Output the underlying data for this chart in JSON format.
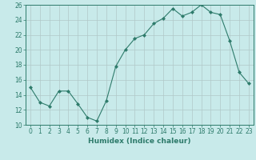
{
  "xlabel": "Humidex (Indice chaleur)",
  "ylabel": "",
  "x": [
    0,
    1,
    2,
    3,
    4,
    5,
    6,
    7,
    8,
    9,
    10,
    11,
    12,
    13,
    14,
    15,
    16,
    17,
    18,
    19,
    20,
    21,
    22,
    23
  ],
  "y": [
    15.0,
    13.0,
    12.5,
    14.5,
    14.5,
    12.8,
    11.0,
    10.5,
    13.2,
    17.8,
    20.0,
    21.5,
    22.0,
    23.5,
    24.2,
    25.5,
    24.5,
    25.0,
    26.0,
    25.0,
    24.7,
    21.2,
    17.0,
    15.5
  ],
  "line_color": "#2e7b6b",
  "marker_color": "#2e7b6b",
  "bg_color": "#c8eaea",
  "grid_color": "#b0c8c8",
  "ylim": [
    10,
    26
  ],
  "xlim": [
    -0.5,
    23.5
  ],
  "yticks": [
    10,
    12,
    14,
    16,
    18,
    20,
    22,
    24,
    26
  ],
  "xticks": [
    0,
    1,
    2,
    3,
    4,
    5,
    6,
    7,
    8,
    9,
    10,
    11,
    12,
    13,
    14,
    15,
    16,
    17,
    18,
    19,
    20,
    21,
    22,
    23
  ],
  "tick_fontsize": 5.5,
  "xlabel_fontsize": 6.5
}
